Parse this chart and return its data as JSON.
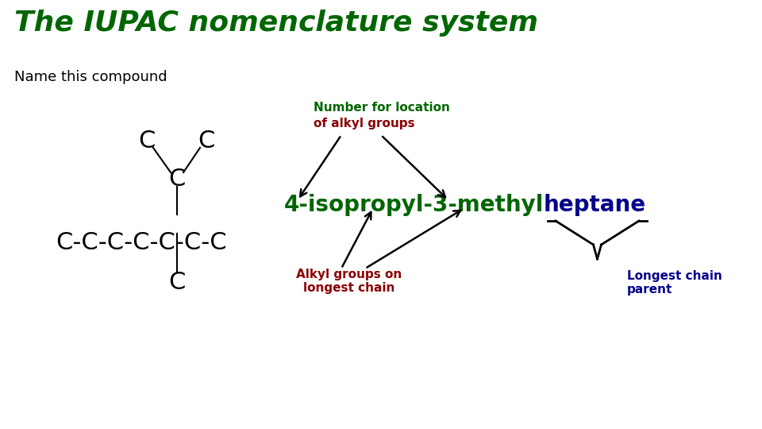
{
  "title": "The IUPAC nomenclature system",
  "title_color": "#006600",
  "title_fontsize": 26,
  "title_style": "italic",
  "title_weight": "bold",
  "subtitle": "Name this compound",
  "subtitle_fontsize": 13,
  "bg_color": "#ffffff",
  "number_label_line1": "Number for location",
  "number_label_line2": "of alkyl groups",
  "number_label_color1": "#006600",
  "number_label_color2": "#8B0000",
  "number_label_fontsize": 11,
  "alkyl_label_text": "Alkyl groups on\nlongest chain",
  "alkyl_label_color": "#8B0000",
  "alkyl_label_fontsize": 11,
  "longest_label_text": "Longest chain\nparent",
  "longest_label_color": "#00008B",
  "longest_label_fontsize": 11,
  "part1_text": "4-isopropyl-3-methyl",
  "part1_color": "#006600",
  "part2_text": "heptane",
  "part2_color": "#00008B",
  "compound_fontsize": 20
}
